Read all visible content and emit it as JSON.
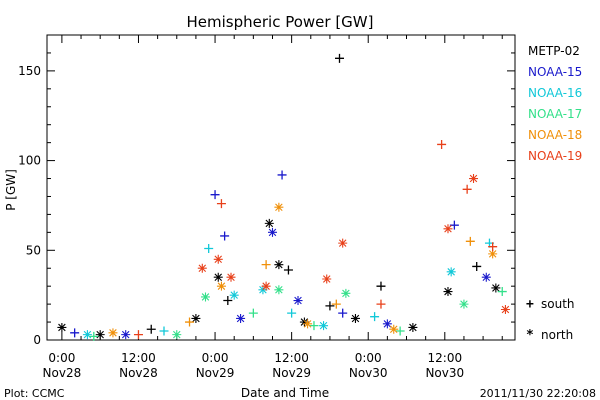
{
  "chart_data": {
    "type": "scatter",
    "title": "Hemispheric Power [GW]",
    "ylabel": "P [GW]",
    "xlabel": "Date and Time",
    "ylim": [
      0,
      170
    ],
    "y_ticks": [
      0,
      50,
      100,
      150
    ],
    "xlim": [
      "2011-11-27 21:40",
      "2011-11-30 23:00"
    ],
    "x_ticks": [
      {
        "x": "2011-11-28 00:00",
        "time": "0:00",
        "date": "Nov28"
      },
      {
        "x": "2011-11-28 12:00",
        "time": "12:00",
        "date": "Nov28"
      },
      {
        "x": "2011-11-29 00:00",
        "time": "0:00",
        "date": "Nov29"
      },
      {
        "x": "2011-11-29 12:00",
        "time": "12:00",
        "date": "Nov29"
      },
      {
        "x": "2011-11-30 00:00",
        "time": "0:00",
        "date": "Nov30"
      },
      {
        "x": "2011-11-30 12:00",
        "time": "12:00",
        "date": "Nov30"
      }
    ],
    "grid": false,
    "legend_position": "right",
    "marker_legend": [
      {
        "symbol": "+",
        "label": "south"
      },
      {
        "symbol": "*",
        "label": "north"
      }
    ],
    "series": [
      {
        "name": "METP-02",
        "color": "#000000",
        "points": [
          {
            "x": "2011-11-28 00:00",
            "y": 7,
            "m": "*"
          },
          {
            "x": "2011-11-28 06:00",
            "y": 3,
            "m": "*"
          },
          {
            "x": "2011-11-28 14:00",
            "y": 6,
            "m": "+"
          },
          {
            "x": "2011-11-28 21:00",
            "y": 12,
            "m": "*"
          },
          {
            "x": "2011-11-29 00:30",
            "y": 35,
            "m": "*"
          },
          {
            "x": "2011-11-29 02:00",
            "y": 22,
            "m": "+"
          },
          {
            "x": "2011-11-29 08:30",
            "y": 65,
            "m": "*"
          },
          {
            "x": "2011-11-29 10:00",
            "y": 42,
            "m": "*"
          },
          {
            "x": "2011-11-29 11:30",
            "y": 39,
            "m": "+"
          },
          {
            "x": "2011-11-29 14:00",
            "y": 10,
            "m": "*"
          },
          {
            "x": "2011-11-29 18:00",
            "y": 19,
            "m": "+"
          },
          {
            "x": "2011-11-29 19:30",
            "y": 157,
            "m": "+"
          },
          {
            "x": "2011-11-29 22:00",
            "y": 12,
            "m": "*"
          },
          {
            "x": "2011-11-30 02:00",
            "y": 30,
            "m": "+"
          },
          {
            "x": "2011-11-30 07:00",
            "y": 7,
            "m": "*"
          },
          {
            "x": "2011-11-30 12:30",
            "y": 27,
            "m": "*"
          },
          {
            "x": "2011-11-30 17:00",
            "y": 41,
            "m": "+"
          },
          {
            "x": "2011-11-30 20:00",
            "y": 29,
            "m": "*"
          }
        ]
      },
      {
        "name": "NOAA-15",
        "color": "#1a1acc",
        "points": [
          {
            "x": "2011-11-28 02:00",
            "y": 4,
            "m": "+"
          },
          {
            "x": "2011-11-28 10:00",
            "y": 3,
            "m": "*"
          },
          {
            "x": "2011-11-29 00:00",
            "y": 81,
            "m": "+"
          },
          {
            "x": "2011-11-29 01:30",
            "y": 58,
            "m": "+"
          },
          {
            "x": "2011-11-29 04:00",
            "y": 12,
            "m": "*"
          },
          {
            "x": "2011-11-29 09:00",
            "y": 60,
            "m": "*"
          },
          {
            "x": "2011-11-29 10:30",
            "y": 92,
            "m": "+"
          },
          {
            "x": "2011-11-29 13:00",
            "y": 22,
            "m": "*"
          },
          {
            "x": "2011-11-29 20:00",
            "y": 15,
            "m": "+"
          },
          {
            "x": "2011-11-30 03:00",
            "y": 9,
            "m": "*"
          },
          {
            "x": "2011-11-30 13:30",
            "y": 64,
            "m": "+"
          },
          {
            "x": "2011-11-30 18:30",
            "y": 35,
            "m": "*"
          }
        ]
      },
      {
        "name": "NOAA-16",
        "color": "#11c8d8",
        "points": [
          {
            "x": "2011-11-28 04:00",
            "y": 3,
            "m": "*"
          },
          {
            "x": "2011-11-28 16:00",
            "y": 5,
            "m": "+"
          },
          {
            "x": "2011-11-28 23:00",
            "y": 51,
            "m": "+"
          },
          {
            "x": "2011-11-29 03:00",
            "y": 25,
            "m": "*"
          },
          {
            "x": "2011-11-29 07:30",
            "y": 28,
            "m": "*"
          },
          {
            "x": "2011-11-29 12:00",
            "y": 15,
            "m": "+"
          },
          {
            "x": "2011-11-29 17:00",
            "y": 8,
            "m": "*"
          },
          {
            "x": "2011-11-30 01:00",
            "y": 13,
            "m": "+"
          },
          {
            "x": "2011-11-30 13:00",
            "y": 38,
            "m": "*"
          },
          {
            "x": "2011-11-30 19:00",
            "y": 54,
            "m": "+"
          }
        ]
      },
      {
        "name": "NOAA-17",
        "color": "#33e08a",
        "points": [
          {
            "x": "2011-11-28 05:00",
            "y": 2,
            "m": "+"
          },
          {
            "x": "2011-11-28 18:00",
            "y": 3,
            "m": "*"
          },
          {
            "x": "2011-11-28 22:30",
            "y": 24,
            "m": "*"
          },
          {
            "x": "2011-11-29 06:00",
            "y": 15,
            "m": "+"
          },
          {
            "x": "2011-11-29 10:00",
            "y": 28,
            "m": "*"
          },
          {
            "x": "2011-11-29 15:30",
            "y": 8,
            "m": "+"
          },
          {
            "x": "2011-11-29 20:30",
            "y": 26,
            "m": "*"
          },
          {
            "x": "2011-11-30 05:00",
            "y": 5,
            "m": "+"
          },
          {
            "x": "2011-11-30 15:00",
            "y": 20,
            "m": "*"
          },
          {
            "x": "2011-11-30 21:00",
            "y": 27,
            "m": "+"
          }
        ]
      },
      {
        "name": "NOAA-18",
        "color": "#f0900a",
        "points": [
          {
            "x": "2011-11-28 08:00",
            "y": 4,
            "m": "*"
          },
          {
            "x": "2011-11-28 20:00",
            "y": 10,
            "m": "+"
          },
          {
            "x": "2011-11-29 01:00",
            "y": 30,
            "m": "*"
          },
          {
            "x": "2011-11-29 08:00",
            "y": 42,
            "m": "+"
          },
          {
            "x": "2011-11-29 10:00",
            "y": 74,
            "m": "*"
          },
          {
            "x": "2011-11-29 14:30",
            "y": 9,
            "m": "*"
          },
          {
            "x": "2011-11-29 19:00",
            "y": 20,
            "m": "+"
          },
          {
            "x": "2011-11-30 04:00",
            "y": 6,
            "m": "*"
          },
          {
            "x": "2011-11-30 16:00",
            "y": 55,
            "m": "+"
          },
          {
            "x": "2011-11-30 19:30",
            "y": 48,
            "m": "*"
          }
        ]
      },
      {
        "name": "NOAA-19",
        "color": "#e8401a",
        "points": [
          {
            "x": "2011-11-28 12:00",
            "y": 3,
            "m": "+"
          },
          {
            "x": "2011-11-28 22:00",
            "y": 40,
            "m": "*"
          },
          {
            "x": "2011-11-29 00:30",
            "y": 45,
            "m": "*"
          },
          {
            "x": "2011-11-29 01:00",
            "y": 76,
            "m": "+"
          },
          {
            "x": "2011-11-29 02:30",
            "y": 35,
            "m": "*"
          },
          {
            "x": "2011-11-29 08:00",
            "y": 30,
            "m": "*"
          },
          {
            "x": "2011-11-29 17:30",
            "y": 34,
            "m": "*"
          },
          {
            "x": "2011-11-29 20:00",
            "y": 54,
            "m": "*"
          },
          {
            "x": "2011-11-30 02:00",
            "y": 20,
            "m": "+"
          },
          {
            "x": "2011-11-30 11:30",
            "y": 109,
            "m": "+"
          },
          {
            "x": "2011-11-30 12:30",
            "y": 62,
            "m": "*"
          },
          {
            "x": "2011-11-30 15:30",
            "y": 84,
            "m": "+"
          },
          {
            "x": "2011-11-30 16:30",
            "y": 90,
            "m": "*"
          },
          {
            "x": "2011-11-30 19:30",
            "y": 52,
            "m": "+"
          },
          {
            "x": "2011-11-30 21:30",
            "y": 17,
            "m": "*"
          }
        ]
      }
    ],
    "footer": {
      "left": "Plot: CCMC",
      "right": "2011/11/30 22:20:08"
    }
  }
}
